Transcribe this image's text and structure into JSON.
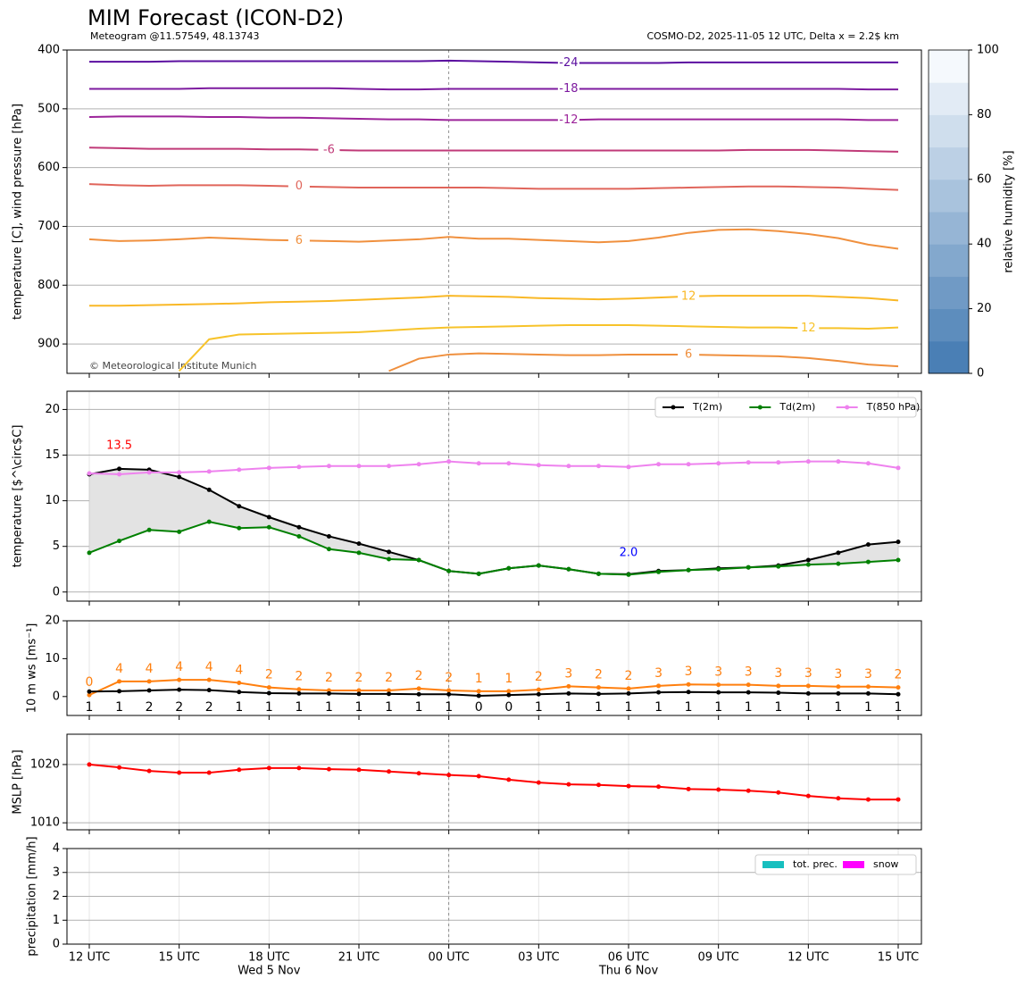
{
  "chart_data": [
    {
      "type": "contour",
      "title": "MIM Forecast (ICON-D2)",
      "subtitle_left": "Meteogram @11.57549, 48.13743",
      "subtitle_right": "COSMO-D2, 2025-11-05 12 UTC, Delta x = 2.2$ km",
      "ylabel": "temperature [C], wind pressure [hPa]",
      "annotation": "© Meteorological Institute Munich",
      "ylim": [
        950,
        400
      ],
      "yticks": [
        400,
        500,
        600,
        700,
        800,
        900
      ],
      "grid": true,
      "colorbar": {
        "label": "relative humidity [%]",
        "lim": [
          0,
          100
        ],
        "ticks": [
          0,
          20,
          40,
          60,
          80,
          100
        ]
      },
      "series": [
        {
          "name": "-24",
          "color": "#5b0fa0",
          "values": [
            420,
            420,
            420,
            419,
            419,
            419,
            419,
            419,
            419,
            419,
            419,
            419,
            418,
            419,
            420,
            421,
            422,
            422,
            422,
            422,
            421,
            421,
            421,
            421,
            421,
            421,
            421,
            421
          ]
        },
        {
          "name": "-18",
          "color": "#7d1a9f",
          "values": [
            466,
            466,
            466,
            466,
            465,
            465,
            465,
            465,
            465,
            466,
            467,
            467,
            466,
            466,
            466,
            466,
            466,
            466,
            466,
            466,
            466,
            466,
            466,
            466,
            466,
            466,
            467,
            467
          ]
        },
        {
          "name": "-12",
          "color": "#9c239a",
          "values": [
            514,
            513,
            513,
            513,
            514,
            514,
            515,
            515,
            516,
            517,
            518,
            518,
            519,
            519,
            519,
            519,
            519,
            518,
            518,
            518,
            518,
            518,
            518,
            518,
            518,
            518,
            519,
            519
          ]
        },
        {
          "name": "-6",
          "color": "#c03a78",
          "values": [
            566,
            567,
            568,
            568,
            568,
            568,
            569,
            569,
            570,
            571,
            571,
            571,
            571,
            571,
            571,
            571,
            571,
            571,
            571,
            571,
            571,
            571,
            570,
            570,
            570,
            571,
            572,
            573
          ]
        },
        {
          "name": "0",
          "color": "#e0655b",
          "values": [
            628,
            630,
            631,
            630,
            630,
            630,
            631,
            632,
            633,
            634,
            634,
            634,
            634,
            634,
            635,
            636,
            636,
            636,
            636,
            635,
            634,
            633,
            632,
            632,
            633,
            634,
            636,
            638
          ]
        },
        {
          "name": "6",
          "color": "#f0903e",
          "values": [
            722,
            725,
            724,
            722,
            719,
            721,
            723,
            724,
            725,
            726,
            724,
            722,
            718,
            721,
            721,
            723,
            725,
            727,
            725,
            719,
            711,
            706,
            705,
            708,
            713,
            720,
            731,
            738
          ]
        },
        {
          "name": "12",
          "color": "#f9b826",
          "values": [
            835,
            835,
            834,
            833,
            832,
            831,
            829,
            828,
            827,
            825,
            823,
            821,
            818,
            819,
            820,
            822,
            823,
            824,
            823,
            821,
            819,
            818,
            818,
            818,
            818,
            820,
            822,
            826
          ]
        },
        {
          "name": "12",
          "color": "#f7c32a",
          "values": [
            null,
            null,
            null,
            946,
            892,
            884,
            883,
            882,
            881,
            880,
            877,
            874,
            872,
            871,
            870,
            869,
            868,
            868,
            868,
            869,
            870,
            871,
            872,
            872,
            873,
            873,
            874,
            872
          ]
        },
        {
          "name": "6",
          "color": "#ef8f3d",
          "values": [
            null,
            null,
            null,
            null,
            null,
            null,
            null,
            null,
            null,
            null,
            946,
            925,
            918,
            916,
            917,
            918,
            919,
            919,
            918,
            918,
            918,
            919,
            920,
            921,
            924,
            929,
            935,
            938
          ]
        }
      ]
    },
    {
      "type": "line",
      "ylabel": "temperature [$^\\circ$C]",
      "ylim": [
        -1,
        22
      ],
      "yticks": [
        0,
        5,
        10,
        15,
        20
      ],
      "grid": true,
      "legend": "upper right",
      "fill_between": [
        0,
        1
      ],
      "series": [
        {
          "name": "T(2m)",
          "color": "#000000",
          "values": [
            12.9,
            13.5,
            13.4,
            12.6,
            11.2,
            9.4,
            8.2,
            7.1,
            6.1,
            5.3,
            4.4,
            3.5,
            2.3,
            2.0,
            2.6,
            2.9,
            2.5,
            2.0,
            1.95,
            2.3,
            2.4,
            2.6,
            2.7,
            2.9,
            3.5,
            4.3,
            5.2,
            5.5
          ]
        },
        {
          "name": "Td(2m)",
          "color": "#008000",
          "values": [
            4.3,
            5.6,
            6.8,
            6.6,
            7.7,
            7.0,
            7.1,
            6.1,
            4.7,
            4.3,
            3.6,
            3.5,
            2.3,
            2.0,
            2.6,
            2.9,
            2.5,
            2.0,
            1.9,
            2.2,
            2.4,
            2.5,
            2.7,
            2.8,
            3.0,
            3.1,
            3.3,
            3.5
          ]
        },
        {
          "name": "T(850 hPa)",
          "color": "#ee82ee",
          "values": [
            13.0,
            12.9,
            13.1,
            13.1,
            13.2,
            13.4,
            13.6,
            13.7,
            13.8,
            13.8,
            13.8,
            14.0,
            14.3,
            14.1,
            14.1,
            13.9,
            13.8,
            13.8,
            13.7,
            14.0,
            14.0,
            14.1,
            14.2,
            14.2,
            14.3,
            14.3,
            14.1,
            13.6
          ]
        }
      ],
      "annotations": [
        {
          "value": 13.5,
          "label": "13.5",
          "color": "#ff0000"
        },
        {
          "value": 1.95,
          "label": "2.0",
          "color": "#0000ff"
        }
      ]
    },
    {
      "type": "line",
      "ylabel": "10 m ws [ms⁻¹]",
      "ylim": [
        -5,
        20
      ],
      "yticks": [
        0,
        10,
        20
      ],
      "grid": false,
      "series": [
        {
          "color": "#ff7f0e",
          "values": [
            0.4,
            4.0,
            4.0,
            4.4,
            4.4,
            3.6,
            2.4,
            1.9,
            1.6,
            1.6,
            1.6,
            2.1,
            1.6,
            1.4,
            1.4,
            1.8,
            2.7,
            2.4,
            2.1,
            2.8,
            3.2,
            3.1,
            3.1,
            2.8,
            2.8,
            2.6,
            2.6,
            2.4
          ],
          "value_labels": [
            "0",
            "4",
            "4",
            "4",
            "4",
            "4",
            "2",
            "2",
            "2",
            "2",
            "2",
            "2",
            "2",
            "1",
            "1",
            "2",
            "3",
            "2",
            "2",
            "3",
            "3",
            "3",
            "3",
            "3",
            "3",
            "3",
            "3",
            "2"
          ]
        },
        {
          "color": "#000000",
          "values": [
            1.3,
            1.4,
            1.6,
            1.8,
            1.7,
            1.2,
            0.9,
            0.8,
            0.8,
            0.7,
            0.7,
            0.6,
            0.6,
            0.2,
            0.4,
            0.6,
            0.8,
            0.7,
            0.8,
            1.1,
            1.2,
            1.1,
            1.1,
            1.0,
            0.8,
            0.8,
            0.8,
            0.6
          ],
          "value_labels": [
            "1",
            "1",
            "2",
            "2",
            "2",
            "1",
            "1",
            "1",
            "1",
            "1",
            "1",
            "1",
            "1",
            "0",
            "0",
            "1",
            "1",
            "1",
            "1",
            "1",
            "1",
            "1",
            "1",
            "1",
            "1",
            "1",
            "1",
            "1"
          ]
        }
      ]
    },
    {
      "type": "line",
      "ylabel": "MSLP [hPa]",
      "ylim": [
        1008.8,
        1025.2
      ],
      "yticks": [
        1010,
        1020
      ],
      "grid": true,
      "series": [
        {
          "color": "#ff0000",
          "values": [
            1020.0,
            1019.5,
            1018.9,
            1018.6,
            1018.6,
            1019.1,
            1019.4,
            1019.4,
            1019.2,
            1019.1,
            1018.8,
            1018.5,
            1018.2,
            1018.0,
            1017.4,
            1016.9,
            1016.6,
            1016.5,
            1016.3,
            1016.2,
            1015.8,
            1015.7,
            1015.5,
            1015.2,
            1014.6,
            1014.2,
            1014.0,
            1014.0
          ]
        }
      ]
    },
    {
      "type": "bar",
      "ylabel": "precipitation [mm/h]",
      "ylim": [
        0,
        4
      ],
      "yticks": [
        0,
        1,
        2,
        3,
        4
      ],
      "grid": true,
      "legend": "upper right",
      "categories": [
        "12 UTC",
        null,
        null,
        "15 UTC",
        null,
        null,
        "18 UTC",
        null,
        null,
        "21 UTC",
        null,
        null,
        "00 UTC",
        null,
        null,
        "03 UTC",
        null,
        null,
        "06 UTC",
        null,
        null,
        "09 UTC",
        null,
        null,
        "12 UTC",
        null,
        null,
        "15 UTC"
      ],
      "categories_2": [
        null,
        null,
        null,
        null,
        null,
        null,
        "Wed 5 Nov",
        null,
        null,
        null,
        null,
        null,
        null,
        null,
        null,
        null,
        null,
        null,
        "Thu 6 Nov",
        null,
        null,
        null,
        null,
        null,
        null,
        null,
        null,
        null
      ],
      "series": [
        {
          "name": "tot. prec.",
          "color": "#17bfbf",
          "values": [
            0,
            0,
            0,
            0,
            0,
            0,
            0,
            0,
            0,
            0,
            0,
            0,
            0,
            0,
            0,
            0,
            0,
            0,
            0,
            0,
            0,
            0,
            0,
            0,
            0,
            0,
            0,
            0
          ]
        },
        {
          "name": "snow",
          "color": "#ff00ff",
          "values": [
            0,
            0,
            0,
            0,
            0,
            0,
            0,
            0,
            0,
            0,
            0,
            0,
            0,
            0,
            0,
            0,
            0,
            0,
            0,
            0,
            0,
            0,
            0,
            0,
            0,
            0,
            0,
            0
          ]
        }
      ]
    }
  ]
}
